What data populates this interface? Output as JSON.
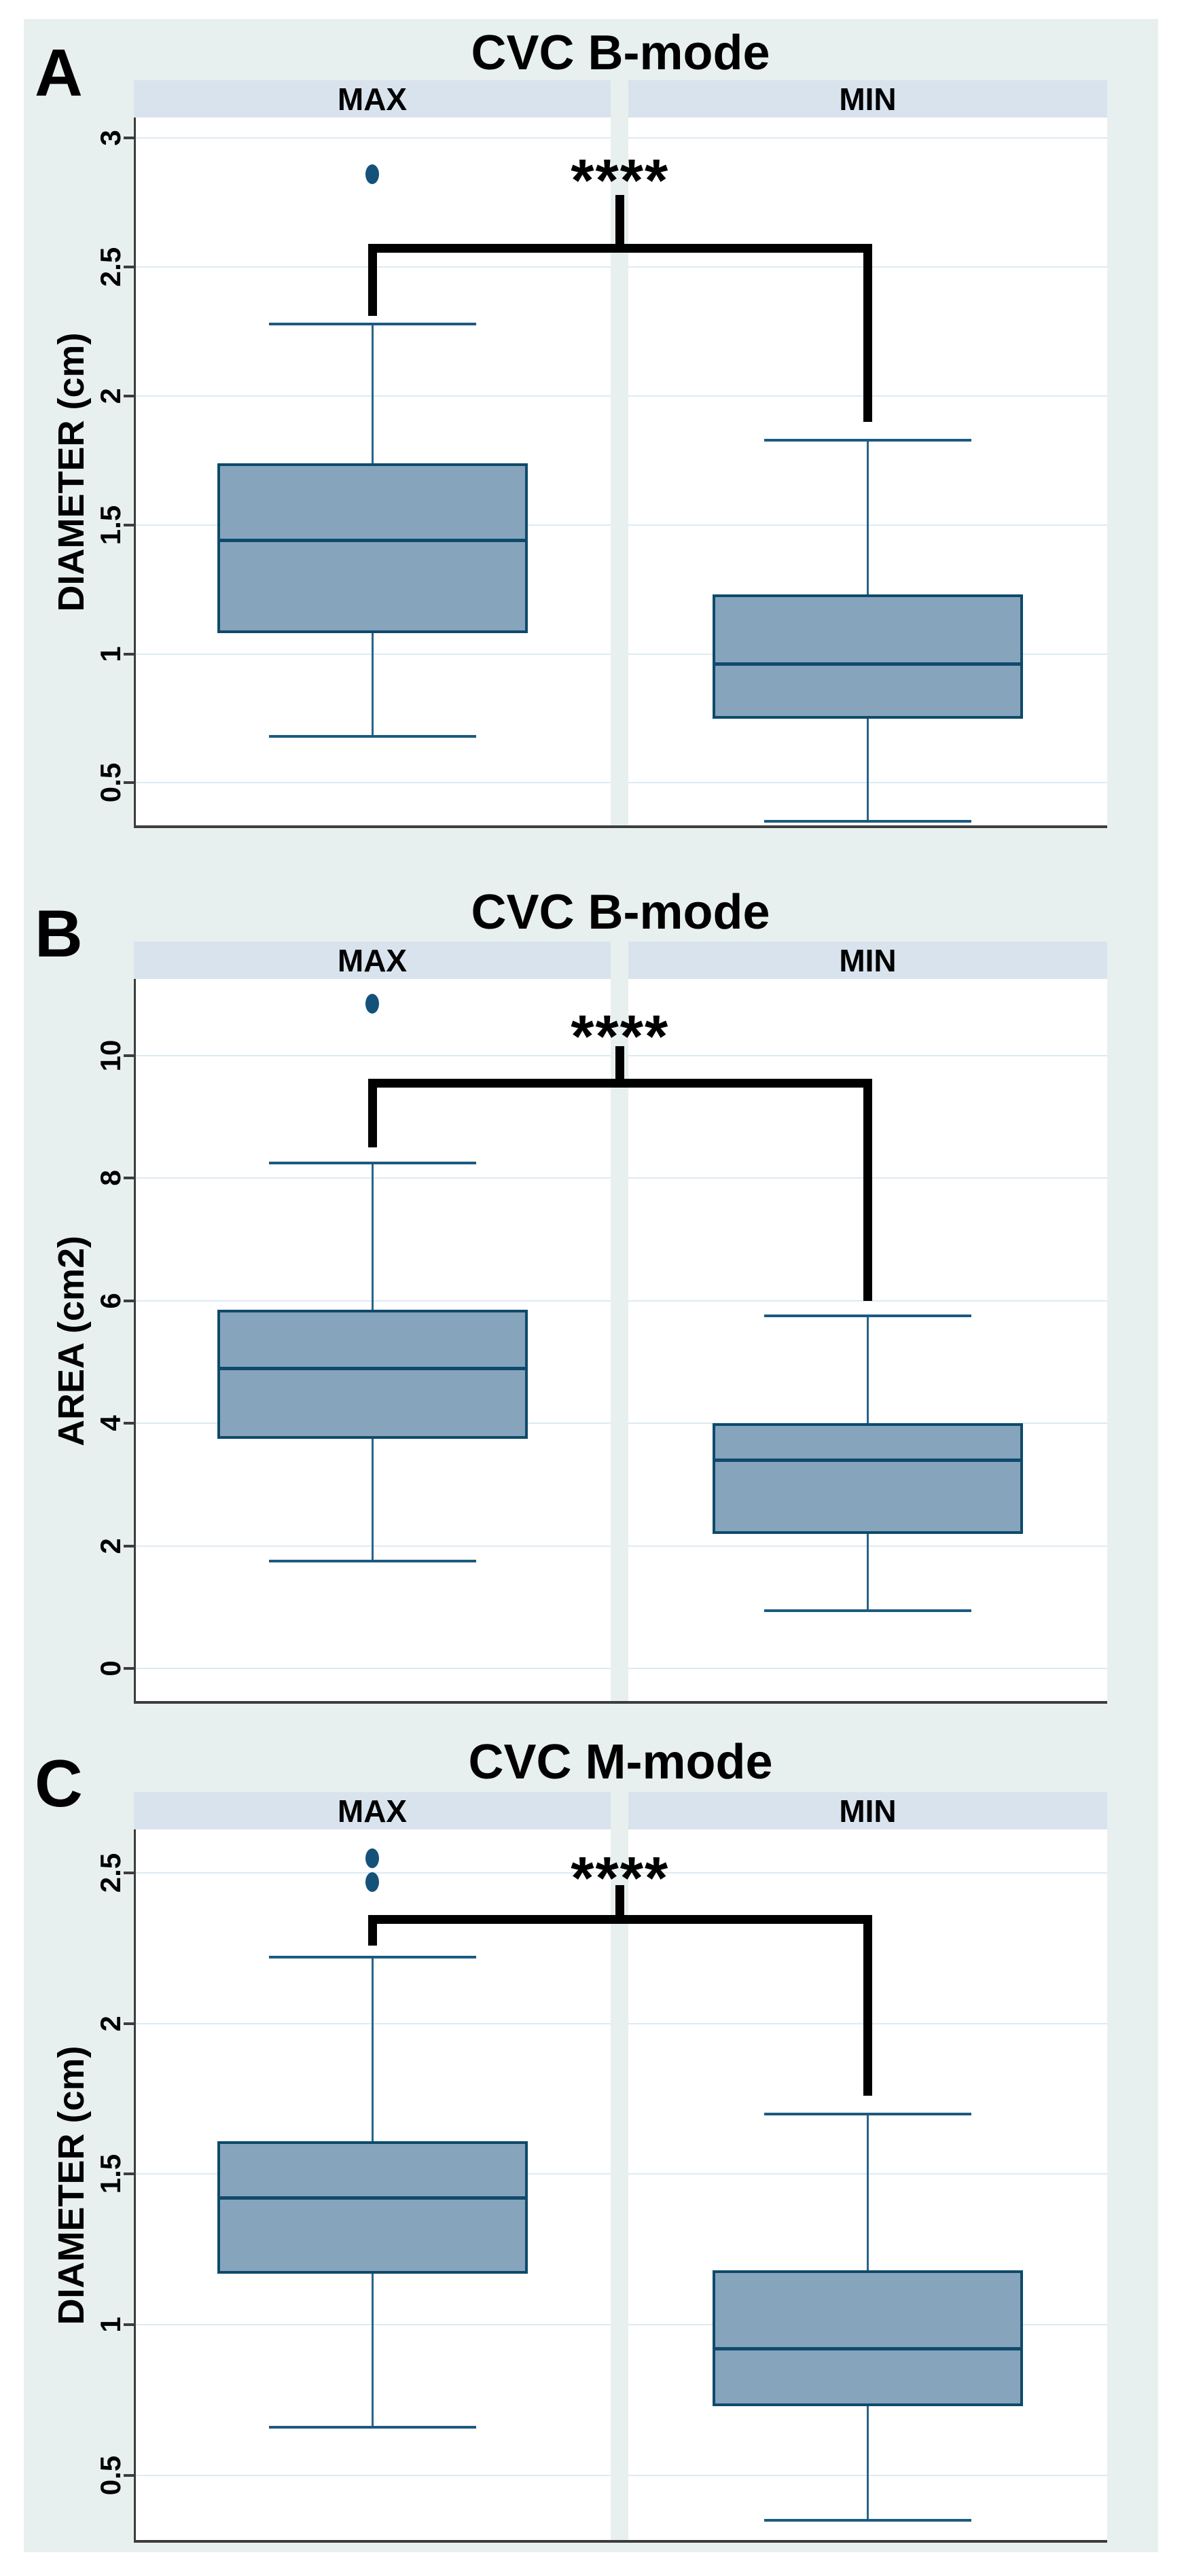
{
  "figure": {
    "panel_letters": [
      "A",
      "B",
      "C"
    ],
    "colors": {
      "figure_background": "#e8f0ef",
      "header_band": "#d8e3ee",
      "box_fill": "#86a4bc",
      "box_border": "#0e4a6b",
      "whisker": "#2a6488",
      "gridline": "#dcebf2",
      "axis": "#3d3d3d",
      "outlier": "#15527a",
      "significance": "#000000"
    }
  },
  "chart_data": [
    {
      "type": "box",
      "panel_letter": "A",
      "title": "CVC B-mode",
      "ylabel": "DIAMETER (cm)",
      "categories": [
        "MAX",
        "MIN"
      ],
      "y_ticks": [
        0.5,
        1,
        1.5,
        2,
        2.5,
        3
      ],
      "ylim": [
        0.33,
        3.08
      ],
      "grid": true,
      "series": [
        {
          "name": "MAX",
          "whisker_low": 0.68,
          "q1": 1.08,
          "median": 1.44,
          "q3": 1.74,
          "whisker_high": 2.28,
          "outliers": [
            2.86
          ]
        },
        {
          "name": "MIN",
          "whisker_low": 0.35,
          "q1": 0.75,
          "median": 0.96,
          "q3": 1.23,
          "whisker_high": 1.83,
          "outliers": []
        }
      ],
      "significance": {
        "label": "****",
        "stars_y": 2.88,
        "stem_top": 2.78,
        "bar_y": 2.59,
        "left_leg_bottom": 2.31,
        "right_leg_bottom": 1.9
      }
    },
    {
      "type": "box",
      "panel_letter": "B",
      "title": "CVC B-mode",
      "ylabel": "AREA (cm2)",
      "categories": [
        "MAX",
        "MIN"
      ],
      "y_ticks": [
        0,
        2,
        4,
        6,
        8,
        10
      ],
      "ylim": [
        -0.55,
        11.25
      ],
      "grid": true,
      "series": [
        {
          "name": "MAX",
          "whisker_low": 1.75,
          "q1": 3.75,
          "median": 4.9,
          "q3": 5.85,
          "whisker_high": 8.25,
          "outliers": [
            10.85
          ]
        },
        {
          "name": "MIN",
          "whisker_low": 0.95,
          "q1": 2.2,
          "median": 3.4,
          "q3": 4.0,
          "whisker_high": 5.75,
          "outliers": []
        }
      ],
      "significance": {
        "label": "****",
        "stars_y": 10.5,
        "stem_top": 10.15,
        "bar_y": 9.62,
        "left_leg_bottom": 8.5,
        "right_leg_bottom": 6.0
      }
    },
    {
      "type": "box",
      "panel_letter": "C",
      "title": "CVC M-mode",
      "ylabel": "DIAMETER (cm)",
      "categories": [
        "MAX",
        "MIN"
      ],
      "y_ticks": [
        0.5,
        1,
        1.5,
        2,
        2.5
      ],
      "ylim": [
        0.28,
        2.645
      ],
      "grid": true,
      "series": [
        {
          "name": "MAX",
          "whisker_low": 0.66,
          "q1": 1.17,
          "median": 1.42,
          "q3": 1.61,
          "whisker_high": 2.22,
          "outliers": [
            2.55,
            2.47
          ]
        },
        {
          "name": "MIN",
          "whisker_low": 0.35,
          "q1": 0.73,
          "median": 0.92,
          "q3": 1.18,
          "whisker_high": 1.7,
          "outliers": []
        }
      ],
      "significance": {
        "label": "****",
        "stars_y": 2.52,
        "stem_top": 2.46,
        "bar_y": 2.36,
        "left_leg_bottom": 2.26,
        "right_leg_bottom": 1.76
      }
    }
  ]
}
